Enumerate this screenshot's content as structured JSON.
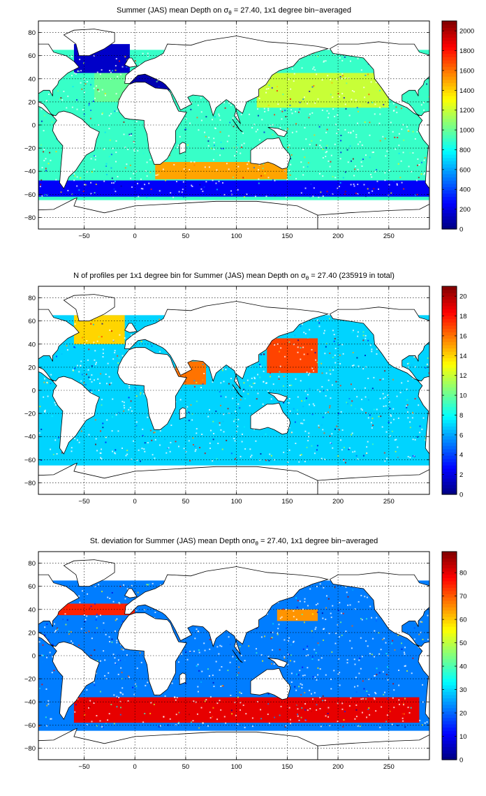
{
  "chart_data": [
    {
      "type": "heatmap",
      "title": "Summer (JAS) mean Depth on σθ = 27.40, 1x1 degree bin−averaged",
      "title_parts": {
        "prefix": "Summer (JAS) mean Depth on ",
        "sigma": "σ",
        "theta": "θ",
        "suffix": " = 27.40, 1x1 degree bin−averaged"
      },
      "xlim": [
        -95,
        290
      ],
      "ylim": [
        -90,
        90
      ],
      "x_ticks": [
        -50,
        0,
        50,
        100,
        150,
        200,
        250
      ],
      "x_tick_labels": [
        "−50",
        "0",
        "50",
        "100",
        "150",
        "200",
        "250"
      ],
      "y_ticks": [
        80,
        60,
        40,
        20,
        0,
        -20,
        -40,
        -60,
        -80
      ],
      "y_tick_labels": [
        "80",
        "60",
        "40",
        "20",
        "0",
        "−20",
        "−40",
        "−60",
        "−80"
      ],
      "grid": true,
      "colormap": "jet",
      "colorbar": {
        "min": 0,
        "max": 2100,
        "ticks": [
          0,
          200,
          400,
          600,
          800,
          1000,
          1200,
          1400,
          1600,
          1800,
          2000
        ],
        "tick_labels": [
          "0",
          "200",
          "400",
          "600",
          "800",
          "1000",
          "1200",
          "1400",
          "1600",
          "1800",
          "2000"
        ]
      },
      "regions": [
        {
          "x": [
            -95,
            290
          ],
          "y": [
            -65,
            65
          ],
          "value": 900
        },
        {
          "x": [
            -95,
            290
          ],
          "y": [
            -62,
            -48
          ],
          "value": 250
        },
        {
          "x": [
            -60,
            -5
          ],
          "y": [
            45,
            70
          ],
          "value": 150
        },
        {
          "x": [
            20,
            150
          ],
          "y": [
            -47,
            -32
          ],
          "value": 1500
        },
        {
          "x": [
            120,
            250
          ],
          "y": [
            15,
            45
          ],
          "value": 1200
        },
        {
          "x": [
            -10,
            40
          ],
          "y": [
            30,
            45
          ],
          "value": 100
        },
        {
          "x": [
            -40,
            -5
          ],
          "y": [
            20,
            45
          ],
          "value": 1000
        }
      ]
    },
    {
      "type": "heatmap",
      "title": "N of profiles per 1x1 degree bin for Summer (JAS) mean Depth on σθ = 27.40 (235919 in total)",
      "title_parts": {
        "prefix": "N of profiles per 1x1 degree bin for Summer (JAS) mean Depth on ",
        "sigma": "σ",
        "theta": "θ",
        "suffix": " = 27.40 (235919 in total)"
      },
      "xlim": [
        -95,
        290
      ],
      "ylim": [
        -90,
        90
      ],
      "x_ticks": [
        -50,
        0,
        50,
        100,
        150,
        200,
        250
      ],
      "x_tick_labels": [
        "−50",
        "0",
        "50",
        "100",
        "150",
        "200",
        "250"
      ],
      "y_ticks": [
        80,
        60,
        40,
        20,
        0,
        -20,
        -40,
        -60,
        -80
      ],
      "y_tick_labels": [
        "80",
        "60",
        "40",
        "20",
        "0",
        "−20",
        "−40",
        "−60",
        "−80"
      ],
      "grid": true,
      "colormap": "jet",
      "colorbar": {
        "min": 0,
        "max": 21,
        "ticks": [
          0,
          2,
          4,
          6,
          8,
          10,
          12,
          14,
          16,
          18,
          20
        ],
        "tick_labels": [
          "0",
          "2",
          "4",
          "6",
          "8",
          "10",
          "12",
          "14",
          "16",
          "18",
          "20"
        ]
      },
      "regions": [
        {
          "x": [
            -95,
            290
          ],
          "y": [
            -65,
            65
          ],
          "value": 7
        },
        {
          "x": [
            130,
            180
          ],
          "y": [
            15,
            45
          ],
          "value": 17
        },
        {
          "x": [
            -60,
            -10
          ],
          "y": [
            40,
            65
          ],
          "value": 14
        },
        {
          "x": [
            40,
            70
          ],
          "y": [
            5,
            25
          ],
          "value": 16
        }
      ]
    },
    {
      "type": "heatmap",
      "title": "St. deviation for Summer (JAS) mean Depth onσθ = 27.40, 1x1 degree bin−averaged",
      "title_parts": {
        "prefix": "St. deviation for Summer (JAS) mean Depth on",
        "sigma": "σ",
        "theta": "θ",
        "suffix": " = 27.40, 1x1 degree bin−averaged"
      },
      "xlim": [
        -95,
        290
      ],
      "ylim": [
        -90,
        90
      ],
      "x_ticks": [
        -50,
        0,
        50,
        100,
        150,
        200,
        250
      ],
      "x_tick_labels": [
        "−50",
        "0",
        "50",
        "100",
        "150",
        "200",
        "250"
      ],
      "y_ticks": [
        80,
        60,
        40,
        20,
        0,
        -20,
        -40,
        -60,
        -80
      ],
      "y_tick_labels": [
        "80",
        "60",
        "40",
        "20",
        "0",
        "−20",
        "−40",
        "−60",
        "−80"
      ],
      "grid": true,
      "colormap": "jet",
      "colorbar": {
        "min": 0,
        "max": 89,
        "ticks": [
          0,
          10,
          20,
          30,
          40,
          50,
          60,
          70,
          80
        ],
        "tick_labels": [
          "0",
          "10",
          "20",
          "30",
          "40",
          "50",
          "60",
          "70",
          "80"
        ]
      },
      "regions": [
        {
          "x": [
            -95,
            290
          ],
          "y": [
            -65,
            65
          ],
          "value": 22
        },
        {
          "x": [
            -90,
            0
          ],
          "y": [
            35,
            45
          ],
          "value": 75
        },
        {
          "x": [
            -60,
            280
          ],
          "y": [
            -58,
            -36
          ],
          "value": 80
        },
        {
          "x": [
            140,
            180
          ],
          "y": [
            30,
            40
          ],
          "value": 65
        }
      ]
    }
  ]
}
